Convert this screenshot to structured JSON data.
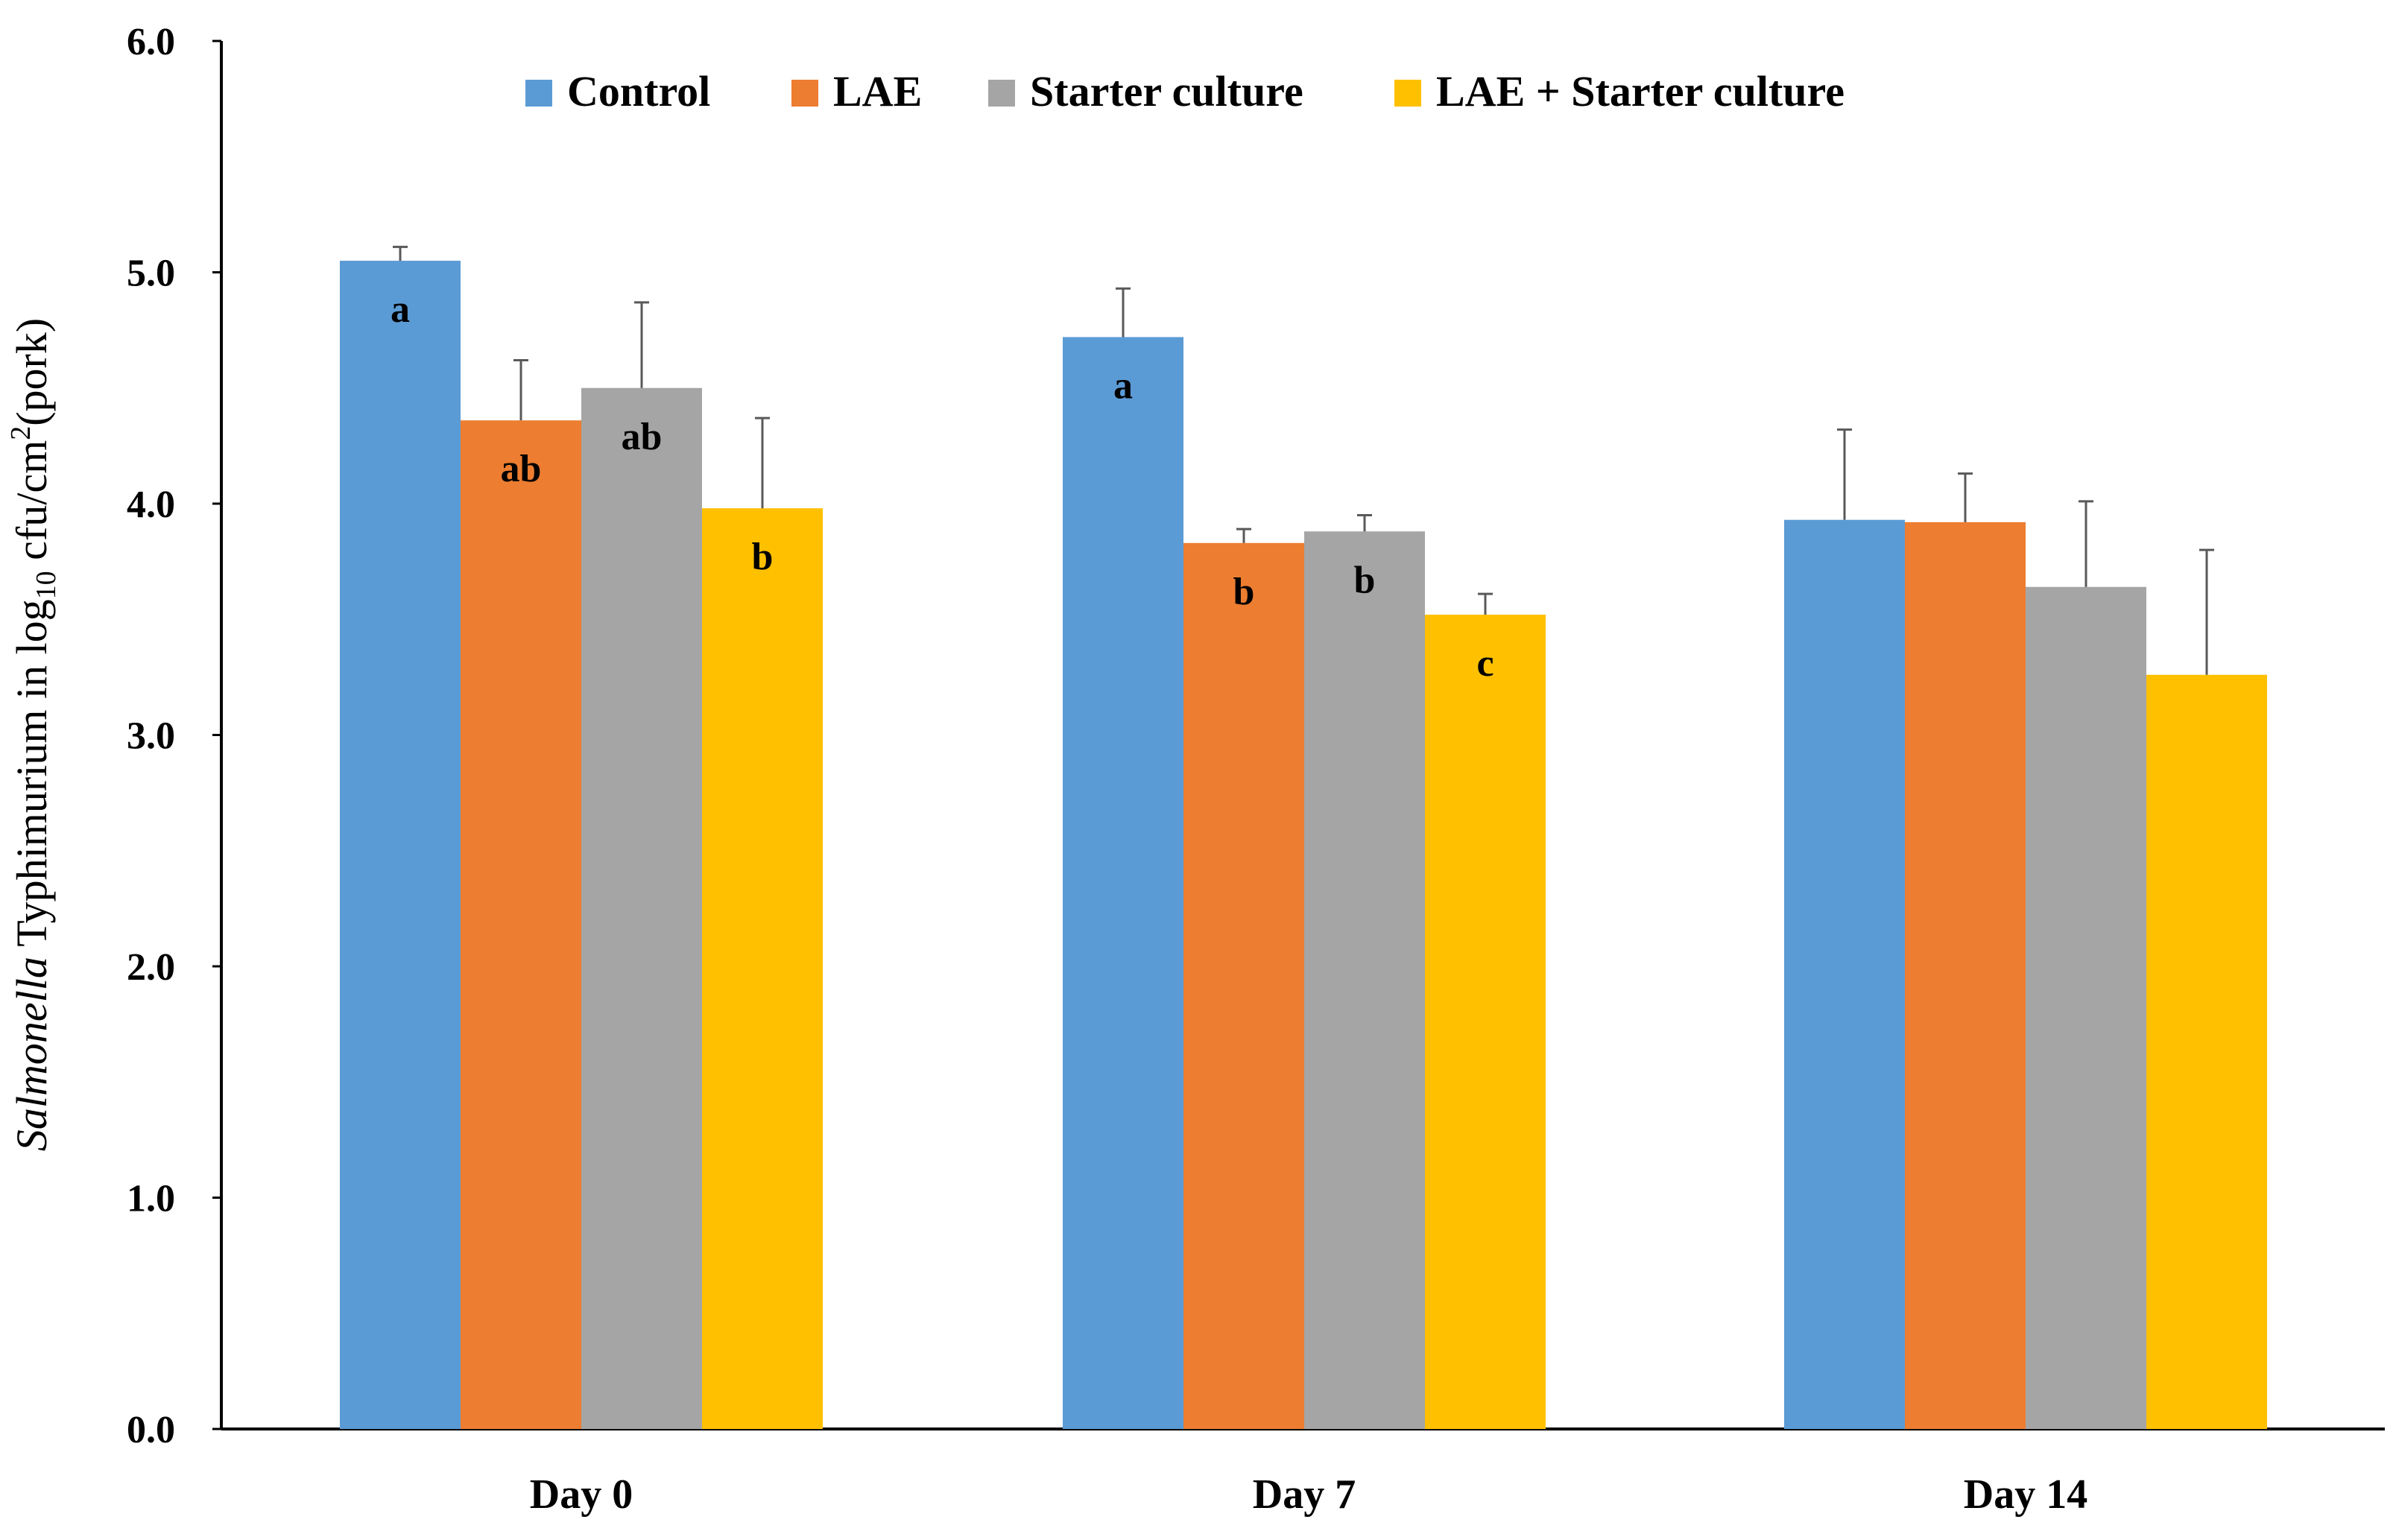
{
  "chart_data": {
    "type": "bar",
    "title": "",
    "xlabel": "",
    "ylabel": {
      "italic_part": "Salmonella",
      "text_part": " Typhimurium in log",
      "subscript": "10",
      "text_part2": " cfu/cm",
      "superscript": "2",
      "text_part3": "(pork)"
    },
    "ylim": [
      0,
      6
    ],
    "yticks": [
      "0.0",
      "1.0",
      "2.0",
      "3.0",
      "4.0",
      "5.0",
      "6.0"
    ],
    "ytick_values": [
      0,
      1,
      2,
      3,
      4,
      5,
      6
    ],
    "categories": [
      "Day 0",
      "Day 7",
      "Day 14"
    ],
    "grid": false,
    "legend_position": "top",
    "series": [
      {
        "name": "Control",
        "color": "#5B9BD5",
        "values": [
          5.05,
          4.72,
          3.93
        ],
        "errors": [
          0.06,
          0.21,
          0.39
        ],
        "labels": [
          "a",
          "a",
          ""
        ]
      },
      {
        "name": "LAE",
        "color": "#ED7D31",
        "values": [
          4.36,
          3.83,
          3.92
        ],
        "errors": [
          0.26,
          0.06,
          0.21
        ],
        "labels": [
          "ab",
          "b",
          ""
        ]
      },
      {
        "name": "Starter culture",
        "color": "#A5A5A5",
        "values": [
          4.5,
          3.88,
          3.64
        ],
        "errors": [
          0.37,
          0.07,
          0.37
        ],
        "labels": [
          "ab",
          "b",
          ""
        ]
      },
      {
        "name": "LAE + Starter culture",
        "color": "#FFC000",
        "values": [
          3.98,
          3.52,
          3.26
        ],
        "errors": [
          0.39,
          0.09,
          0.54
        ],
        "labels": [
          "b",
          "c",
          ""
        ]
      }
    ]
  }
}
